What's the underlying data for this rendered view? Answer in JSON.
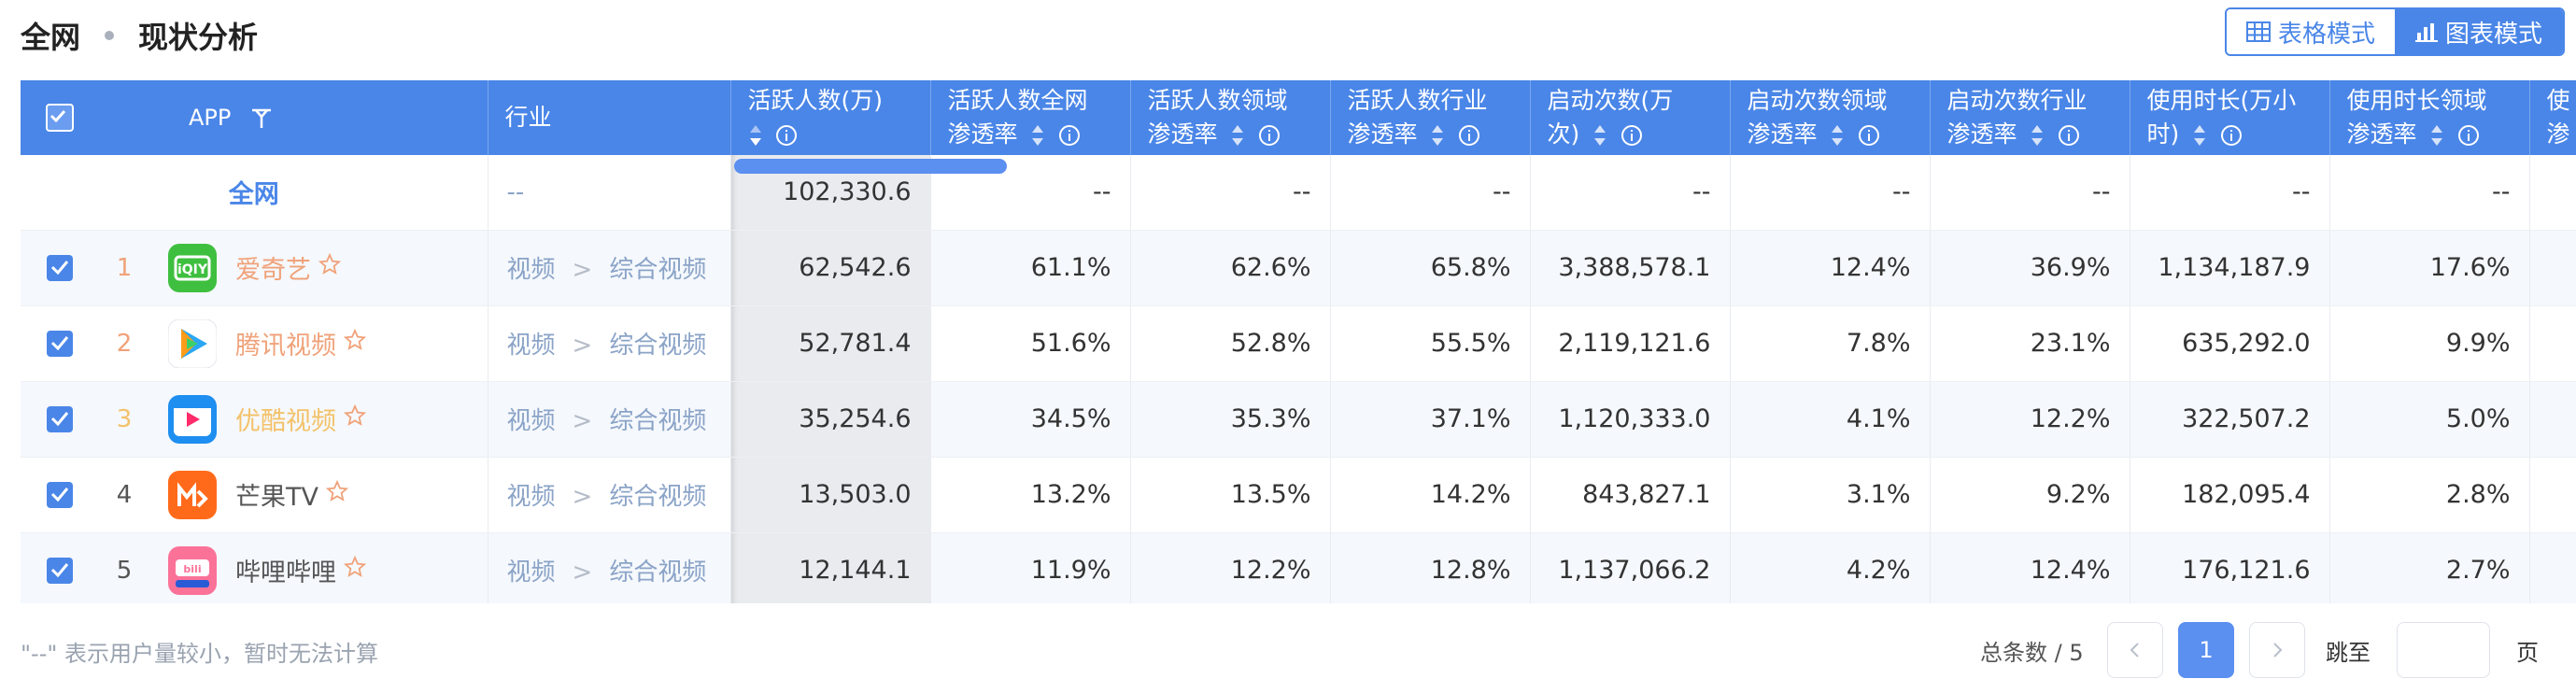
{
  "header": {
    "crumb1": "全网",
    "crumb2": "现状分析",
    "table_mode": "表格模式",
    "chart_mode": "图表模式"
  },
  "table": {
    "columns": {
      "app": "APP",
      "industry": "行业",
      "c1": "活跃人数(万)",
      "c2a": "活跃人数全网",
      "c2b": "渗透率",
      "c3a": "活跃人数领域",
      "c3b": "渗透率",
      "c4a": "活跃人数行业",
      "c4b": "渗透率",
      "c5a": "启动次数(万",
      "c5b": "次)",
      "c6a": "启动次数领域",
      "c6b": "渗透率",
      "c7a": "启动次数行业",
      "c7b": "渗透率",
      "c8a": "使用时长(万小",
      "c8b": "时)",
      "c9a": "使用时长领域",
      "c9b": "渗透率",
      "c10a": "使",
      "c10b": "渗"
    },
    "total_row": {
      "label": "全网",
      "industry": "--",
      "values": [
        "102,330.6",
        "--",
        "--",
        "--",
        "--",
        "--",
        "--",
        "--",
        "--"
      ]
    },
    "rows": [
      {
        "rank": "1",
        "name": "爱奇艺",
        "cat1": "视频",
        "sep": ">",
        "cat2": "综合视频",
        "values": [
          "62,542.6",
          "61.1%",
          "62.6%",
          "65.8%",
          "3,388,578.1",
          "12.4%",
          "36.9%",
          "1,134,187.9",
          "17.6%"
        ]
      },
      {
        "rank": "2",
        "name": "腾讯视频",
        "cat1": "视频",
        "sep": ">",
        "cat2": "综合视频",
        "values": [
          "52,781.4",
          "51.6%",
          "52.8%",
          "55.5%",
          "2,119,121.6",
          "7.8%",
          "23.1%",
          "635,292.0",
          "9.9%"
        ]
      },
      {
        "rank": "3",
        "name": "优酷视频",
        "cat1": "视频",
        "sep": ">",
        "cat2": "综合视频",
        "values": [
          "35,254.6",
          "34.5%",
          "35.3%",
          "37.1%",
          "1,120,333.0",
          "4.1%",
          "12.2%",
          "322,507.2",
          "5.0%"
        ]
      },
      {
        "rank": "4",
        "name": "芒果TV",
        "cat1": "视频",
        "sep": ">",
        "cat2": "综合视频",
        "values": [
          "13,503.0",
          "13.2%",
          "13.5%",
          "14.2%",
          "843,827.1",
          "3.1%",
          "9.2%",
          "182,095.4",
          "2.8%"
        ]
      },
      {
        "rank": "5",
        "name": "哔哩哔哩",
        "cat1": "视频",
        "sep": ">",
        "cat2": "综合视频",
        "values": [
          "12,144.1",
          "11.9%",
          "12.2%",
          "12.8%",
          "1,137,066.2",
          "4.2%",
          "12.4%",
          "176,121.6",
          "2.7%"
        ]
      }
    ],
    "rank_colors": [
      "#f0a27a",
      "#f0a27a",
      "#f3c26a",
      "#555555",
      "#555555"
    ],
    "logo_colors": [
      "#3fbf3f",
      "#ffffff",
      "#2a8cf0",
      "#ff6a1a",
      "#fb7299"
    ],
    "icons": [
      "iqiyi-logo-icon",
      "tencent-video-logo-icon",
      "youku-logo-icon",
      "mango-tv-logo-icon",
      "bilibili-logo-icon"
    ]
  },
  "footer": {
    "note": "\"--\" 表示用户量较小，暂时无法计算",
    "total": "总条数 / 5",
    "current_page": "1",
    "jump_label": "跳至",
    "jump_value": "",
    "page_suffix": "页"
  },
  "colors": {
    "accent": "#4a86e8",
    "industry_text": "#8aa3c7"
  }
}
